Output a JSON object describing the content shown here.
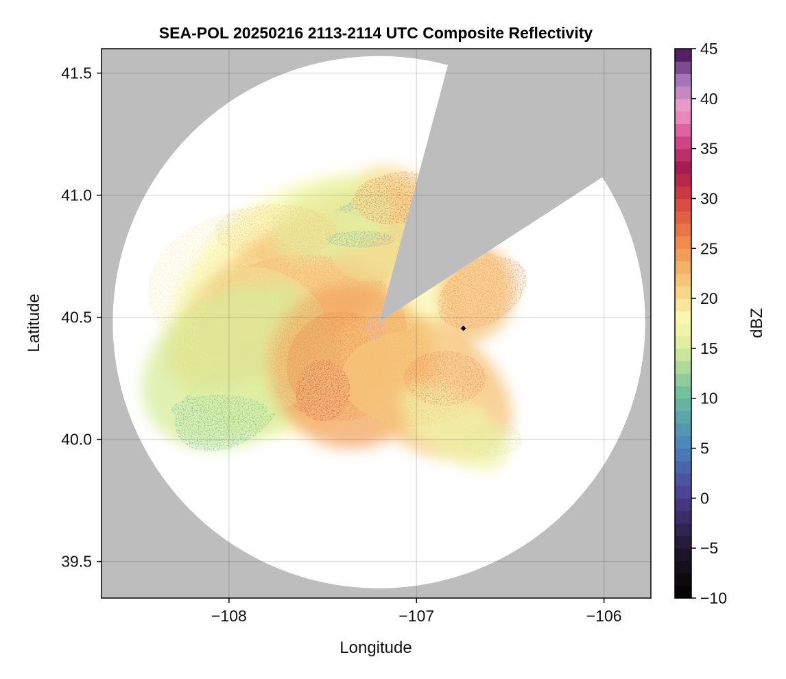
{
  "chart_data": {
    "type": "heatmap",
    "title": "SEA-POL 20250216 2113-2114 UTC Composite Reflectivity",
    "xlabel": "Longitude",
    "ylabel": "Latitude",
    "xlim": [
      -108.68,
      -105.75
    ],
    "ylim": [
      39.35,
      41.6
    ],
    "x_ticks": [
      -108,
      -107,
      -106
    ],
    "x_tick_labels": [
      "−108",
      "−107",
      "−106"
    ],
    "y_ticks": [
      39.5,
      40.0,
      40.5,
      41.0,
      41.5
    ],
    "y_tick_labels": [
      "39.5",
      "40.0",
      "40.5",
      "41.0",
      "41.5"
    ],
    "grid": true,
    "background_color": "#bdbdbd",
    "radar": {
      "center_lon": -107.2,
      "center_lat": 40.48,
      "range_lon_deg": 1.42,
      "range_lat_deg": 1.09,
      "blocked_sectors_deg_from_north": [
        [
          15,
          57
        ]
      ]
    },
    "marker": {
      "lon": -106.75,
      "lat": 40.455,
      "shape": "diamond"
    },
    "colorbar": {
      "label": "dBZ",
      "min": -10,
      "max": 45,
      "ticks": [
        -10,
        -5,
        0,
        5,
        10,
        15,
        20,
        25,
        30,
        35,
        40,
        45
      ],
      "tick_labels": [
        "−10",
        "−5",
        "0",
        "5",
        "10",
        "15",
        "20",
        "25",
        "30",
        "35",
        "40",
        "45"
      ],
      "colormap": "Spectral_r + magenta/purple extension"
    },
    "reflectivity_regions": [
      {
        "region": "northwest band",
        "center_lon": -107.75,
        "center_lat": 40.68,
        "dbz": 23
      },
      {
        "region": "west",
        "center_lon": -108.05,
        "center_lat": 40.55,
        "dbz": 18
      },
      {
        "region": "near radar core",
        "center_lon": -107.22,
        "center_lat": 40.46,
        "dbz": 34
      },
      {
        "region": "southwest of radar",
        "center_lon": -107.45,
        "center_lat": 40.25,
        "dbz": 28
      },
      {
        "region": "southeast lobe",
        "center_lon": -106.95,
        "center_lat": 40.2,
        "dbz": 24
      },
      {
        "region": "north cell",
        "center_lon": -107.15,
        "center_lat": 40.95,
        "dbz": 26
      },
      {
        "region": "northeast sector",
        "center_lon": -106.65,
        "center_lat": 40.6,
        "dbz": 25
      },
      {
        "region": "southwest green patch",
        "center_lon": -108.0,
        "center_lat": 40.13,
        "dbz": 10
      },
      {
        "region": "north-central teal streak",
        "center_lon": -107.3,
        "center_lat": 40.82,
        "dbz": 9
      }
    ]
  }
}
